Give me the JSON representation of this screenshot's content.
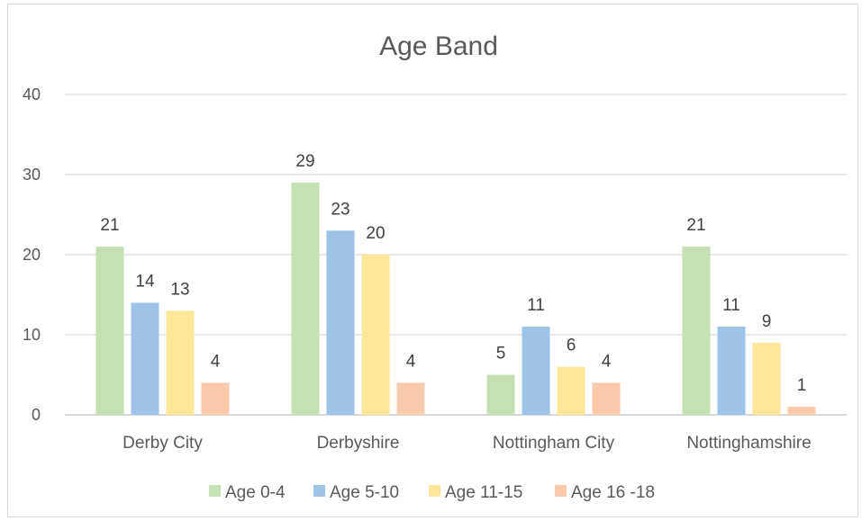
{
  "chart_data": {
    "type": "bar",
    "title": "Age Band",
    "xlabel": "",
    "ylabel": "",
    "ylim": [
      0,
      40
    ],
    "yticks": [
      0,
      10,
      20,
      30,
      40
    ],
    "grid": true,
    "legend_position": "bottom",
    "categories": [
      "Derby City",
      "Derbyshire",
      "Nottingham City",
      "Nottinghamshire"
    ],
    "series": [
      {
        "name": "Age 0-4",
        "color": "#c5e0b4",
        "values": [
          21,
          29,
          5,
          21
        ]
      },
      {
        "name": "Age 5-10",
        "color": "#9dc3e6",
        "values": [
          14,
          23,
          11,
          11
        ]
      },
      {
        "name": "Age 11-15",
        "color": "#ffe699",
        "values": [
          13,
          20,
          6,
          9
        ]
      },
      {
        "name": "Age 16 -18",
        "color": "#f8cbad",
        "values": [
          4,
          4,
          4,
          1
        ]
      }
    ]
  }
}
